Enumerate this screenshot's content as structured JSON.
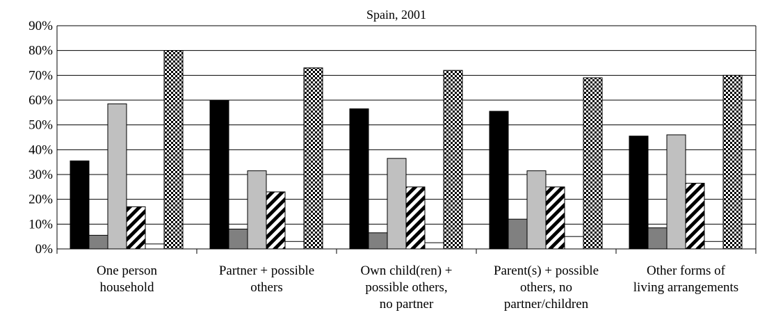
{
  "chart_data": {
    "type": "bar",
    "title": "Spain, 2001",
    "xlabel": "",
    "ylabel": "",
    "ylim": [
      0,
      90
    ],
    "yticks": [
      "0%",
      "10%",
      "20%",
      "30%",
      "40%",
      "50%",
      "60%",
      "70%",
      "80%",
      "90%"
    ],
    "grid": true,
    "legend": "none",
    "categories": [
      [
        "One person",
        "household"
      ],
      [
        "Partner + possible",
        "others"
      ],
      [
        "Own child(ren) +",
        "possible others,",
        "no partner"
      ],
      [
        "Parent(s) + possible",
        "others, no",
        "partner/children"
      ],
      [
        "Other forms of",
        "living arrangements"
      ]
    ],
    "series": [
      {
        "fill": "black",
        "values": [
          35.5,
          60,
          56.5,
          55.5,
          45.5
        ]
      },
      {
        "fill": "dark-gray",
        "values": [
          5.5,
          8,
          6.5,
          12,
          8.5
        ]
      },
      {
        "fill": "light-gray",
        "values": [
          58.5,
          31.5,
          36.5,
          31.5,
          46
        ]
      },
      {
        "fill": "diagonal-stripes",
        "values": [
          17,
          23,
          25,
          25,
          26.5
        ]
      },
      {
        "fill": "white",
        "values": [
          2,
          3,
          2.5,
          5,
          3
        ]
      },
      {
        "fill": "checkerboard",
        "values": [
          80,
          73,
          72,
          69,
          70
        ]
      }
    ],
    "colors": {
      "black": "#000000",
      "dark-gray": "#808080",
      "light-gray": "#c0c0c0",
      "white": "#ffffff"
    }
  }
}
